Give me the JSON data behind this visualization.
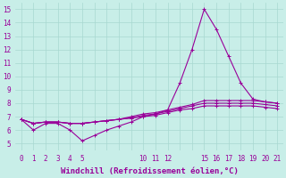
{
  "bg_color": "#c8eee8",
  "grid_color": "#a8d8d0",
  "line_color": "#990099",
  "xlim": [
    -0.5,
    21.5
  ],
  "ylim": [
    4.5,
    15.5
  ],
  "x_ticks": [
    0,
    1,
    2,
    3,
    4,
    5,
    10,
    11,
    12,
    15,
    16,
    17,
    18,
    19,
    20,
    21
  ],
  "yticks": [
    5,
    6,
    7,
    8,
    9,
    10,
    11,
    12,
    13,
    14,
    15
  ],
  "xlabel": "Windchill (Refroidissement éolien,°C)",
  "tick_fontsize": 5.5,
  "xlabel_fontsize": 6.5,
  "line1_x": [
    0,
    1,
    2,
    3,
    4,
    5,
    6,
    7,
    8,
    9,
    10,
    11,
    12,
    13,
    14,
    15,
    16,
    17,
    18,
    19,
    20,
    21
  ],
  "line1_y": [
    6.8,
    6.0,
    6.5,
    6.5,
    6.0,
    5.2,
    5.6,
    6.0,
    6.3,
    6.6,
    7.0,
    7.2,
    7.5,
    9.5,
    12.0,
    15.0,
    13.5,
    11.5,
    9.5,
    8.3,
    8.1,
    8.0
  ],
  "line2_x": [
    0,
    1,
    2,
    3,
    4,
    5,
    6,
    7,
    8,
    9,
    10,
    11,
    12,
    13,
    14,
    15,
    16,
    17,
    18,
    19,
    20,
    21
  ],
  "line2_y": [
    6.8,
    6.5,
    6.6,
    6.6,
    6.5,
    6.5,
    6.6,
    6.7,
    6.8,
    7.0,
    7.2,
    7.3,
    7.5,
    7.7,
    7.9,
    8.2,
    8.2,
    8.2,
    8.2,
    8.2,
    8.1,
    8.0
  ],
  "line3_x": [
    0,
    1,
    2,
    3,
    4,
    5,
    6,
    7,
    8,
    9,
    10,
    11,
    12,
    13,
    14,
    15,
    16,
    17,
    18,
    19,
    20,
    21
  ],
  "line3_y": [
    6.8,
    6.5,
    6.6,
    6.6,
    6.5,
    6.5,
    6.6,
    6.7,
    6.8,
    6.9,
    7.1,
    7.2,
    7.4,
    7.6,
    7.8,
    8.0,
    8.0,
    8.0,
    8.0,
    8.0,
    7.9,
    7.8
  ],
  "line4_x": [
    0,
    1,
    2,
    3,
    4,
    5,
    6,
    7,
    8,
    9,
    10,
    11,
    12,
    13,
    14,
    15,
    16,
    17,
    18,
    19,
    20,
    21
  ],
  "line4_y": [
    6.8,
    6.5,
    6.6,
    6.6,
    6.5,
    6.5,
    6.6,
    6.7,
    6.8,
    6.9,
    7.0,
    7.1,
    7.3,
    7.5,
    7.6,
    7.8,
    7.8,
    7.8,
    7.8,
    7.8,
    7.7,
    7.6
  ]
}
